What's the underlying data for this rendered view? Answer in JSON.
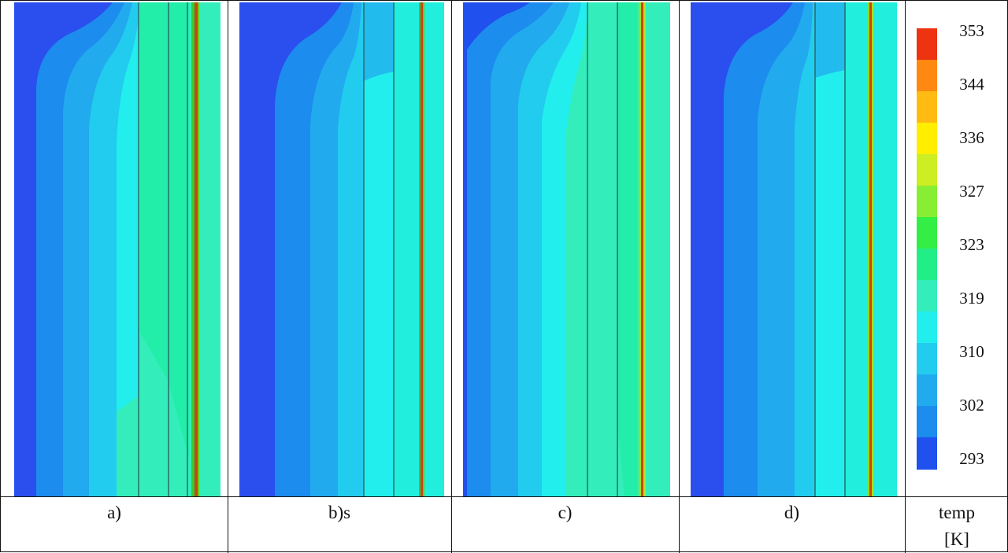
{
  "panels": [
    {
      "caption": "a)"
    },
    {
      "caption": "b)s"
    },
    {
      "caption": "c)"
    },
    {
      "caption": "d)"
    }
  ],
  "legend": {
    "title_line1": "temp",
    "title_line2": "[K]",
    "ticks": [
      "353",
      "344",
      "336",
      "327",
      "323",
      "319",
      "310",
      "302",
      "293"
    ],
    "colors": [
      "#ee3311",
      "#ff8811",
      "#ffbb11",
      "#ffee00",
      "#ccee22",
      "#88ee33",
      "#33ee44",
      "#22ee88",
      "#33eebb",
      "#22eeee",
      "#22ccee",
      "#22aaee",
      "#1c8cee",
      "#2050ee"
    ]
  }
}
